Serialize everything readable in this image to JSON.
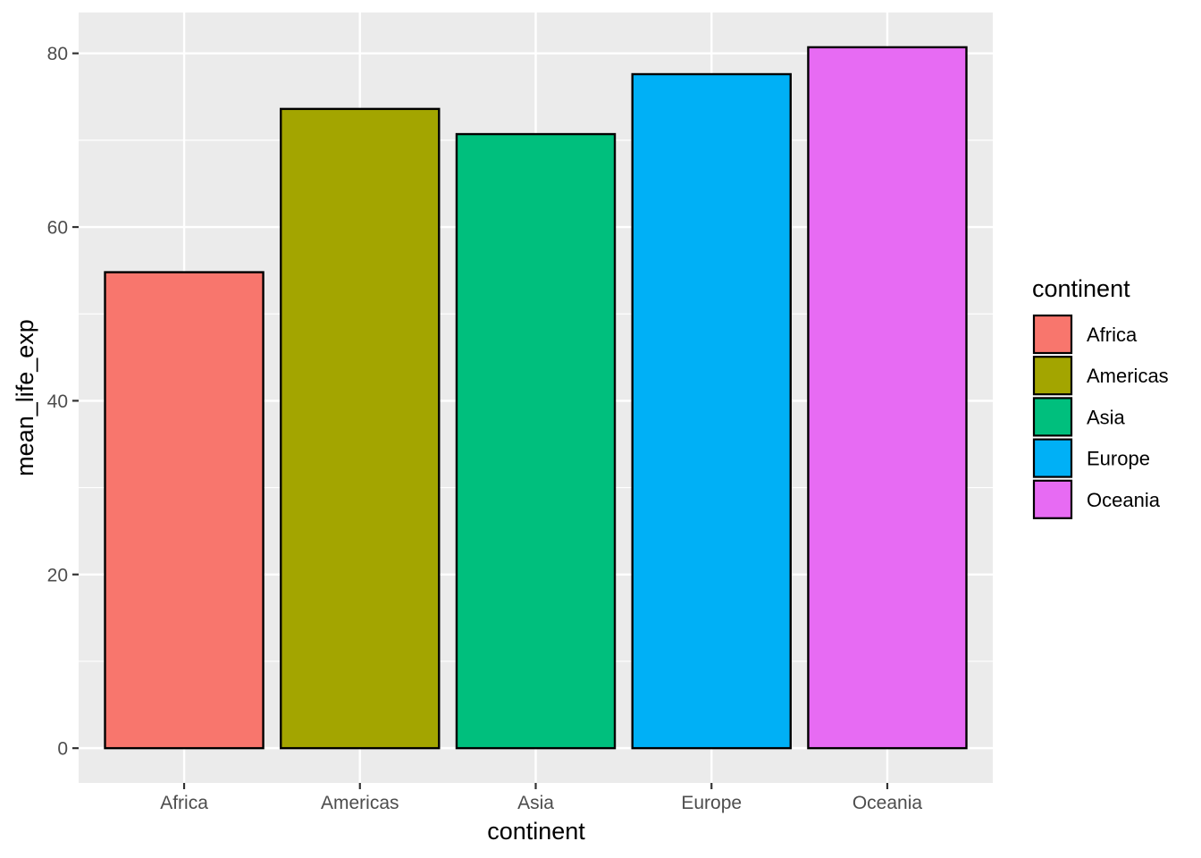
{
  "chart_data": {
    "type": "bar",
    "categories": [
      "Africa",
      "Americas",
      "Asia",
      "Europe",
      "Oceania"
    ],
    "values": [
      54.8,
      73.6,
      70.7,
      77.6,
      80.7
    ],
    "colors": [
      "#F8766D",
      "#A3A500",
      "#00BF7D",
      "#00B0F6",
      "#E76BF3"
    ],
    "xlabel": "continent",
    "ylabel": "mean_life_exp",
    "yticks": [
      0,
      20,
      40,
      60,
      80
    ],
    "ylim": [
      -4.0,
      84.7
    ],
    "grid": true,
    "panel_background": "#EBEBEB",
    "legend": {
      "title": "continent",
      "placement": "right",
      "entries": [
        "Africa",
        "Americas",
        "Asia",
        "Europe",
        "Oceania"
      ]
    }
  }
}
